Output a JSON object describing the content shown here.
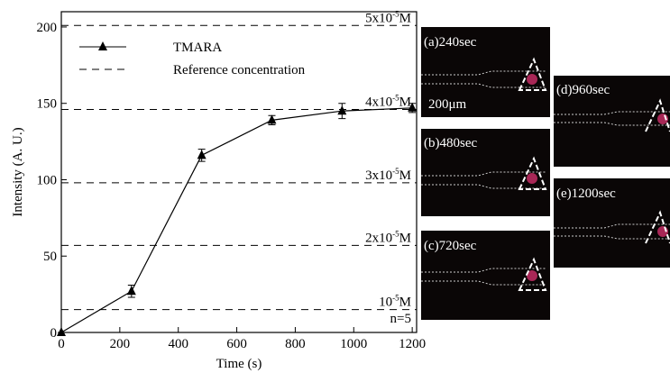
{
  "chart_data": {
    "type": "line",
    "y_label": "Intensity (A. U.)",
    "x_label": "Time (s)",
    "x": [
      0,
      240,
      480,
      720,
      960,
      1200
    ],
    "series": [
      {
        "name": "TMARA",
        "color": "#000000",
        "values": [
          0,
          27,
          116,
          139,
          145,
          147
        ],
        "errors": [
          0,
          4,
          4,
          3,
          5,
          3
        ]
      }
    ],
    "reference_name": "Reference concentration",
    "reference_lines": [
      {
        "value": 201,
        "base": "5x10",
        "exponent": "-5",
        "suffix": "M"
      },
      {
        "value": 146,
        "base": "4x10",
        "exponent": "-5",
        "suffix": "M"
      },
      {
        "value": 98,
        "base": "3x10",
        "exponent": "-5",
        "suffix": "M"
      },
      {
        "value": 57,
        "base": "2x10",
        "exponent": "-5",
        "suffix": "M"
      },
      {
        "value": 15,
        "base": "10",
        "exponent": "-5",
        "suffix": "M"
      }
    ],
    "annotation": "n=5",
    "xlim": [
      0,
      1215
    ],
    "ylim": [
      0,
      210
    ],
    "xticks": [
      0,
      200,
      400,
      600,
      800,
      1000,
      1200
    ],
    "yticks": [
      0,
      50,
      100,
      150,
      200
    ]
  },
  "panels": [
    {
      "label": "(a)240sec"
    },
    {
      "label": "(b)480sec"
    },
    {
      "label": "(c)720sec"
    },
    {
      "label": "(d)960sec"
    },
    {
      "label": "(e)1200sec"
    }
  ],
  "scale_bar": "200μm"
}
